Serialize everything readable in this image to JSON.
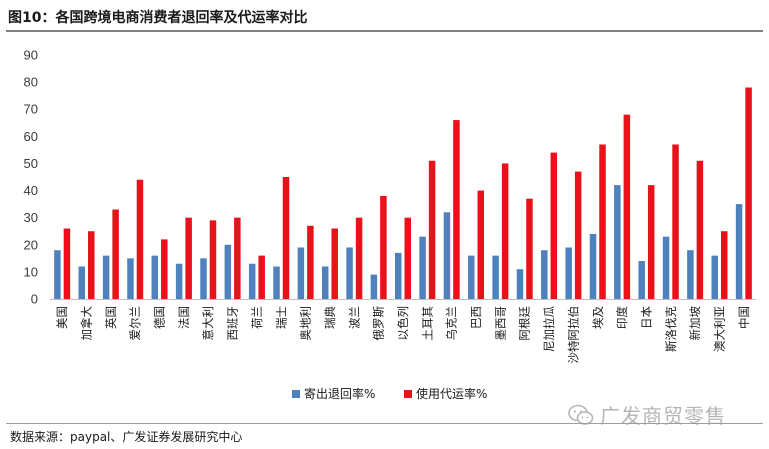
{
  "header": {
    "title": "图10：各国跨境电商消费者退回率及代运率对比"
  },
  "footer": {
    "source": "数据来源：paypal、广发证券发展研究中心"
  },
  "watermark": {
    "text": "广发商贸零售",
    "icon": "wechat-icon",
    "color": "#b5b5b5"
  },
  "chart_data": {
    "type": "bar",
    "title": "",
    "xlabel": "",
    "ylabel": "",
    "ylim": [
      0,
      90
    ],
    "yticks": [
      0,
      10,
      20,
      30,
      40,
      50,
      60,
      70,
      80,
      90
    ],
    "grid": false,
    "legend_position": "bottom",
    "categories": [
      "美国",
      "加拿大",
      "英国",
      "爱尔兰",
      "德国",
      "法国",
      "意大利",
      "西班牙",
      "荷兰",
      "瑞士",
      "奥地利",
      "瑞典",
      "波兰",
      "俄罗斯",
      "以色列",
      "土耳其",
      "乌克兰",
      "巴西",
      "墨西哥",
      "阿根廷",
      "尼加拉瓜",
      "沙特阿拉伯",
      "埃及",
      "印度",
      "日本",
      "斯洛伐克",
      "新加坡",
      "澳大利亚",
      "中国"
    ],
    "series": [
      {
        "name": "寄出退回率%",
        "color": "#4f81bd",
        "values": [
          18,
          12,
          16,
          15,
          16,
          13,
          15,
          20,
          13,
          12,
          19,
          12,
          19,
          9,
          17,
          23,
          32,
          16,
          16,
          11,
          18,
          19,
          24,
          42,
          14,
          23,
          18,
          16,
          35
        ]
      },
      {
        "name": "使用代运率%",
        "color": "#e8121a",
        "values": [
          26,
          25,
          33,
          44,
          22,
          30,
          29,
          30,
          16,
          45,
          27,
          26,
          30,
          38,
          30,
          51,
          66,
          40,
          50,
          37,
          54,
          47,
          57,
          68,
          42,
          57,
          51,
          25,
          78
        ]
      }
    ]
  }
}
